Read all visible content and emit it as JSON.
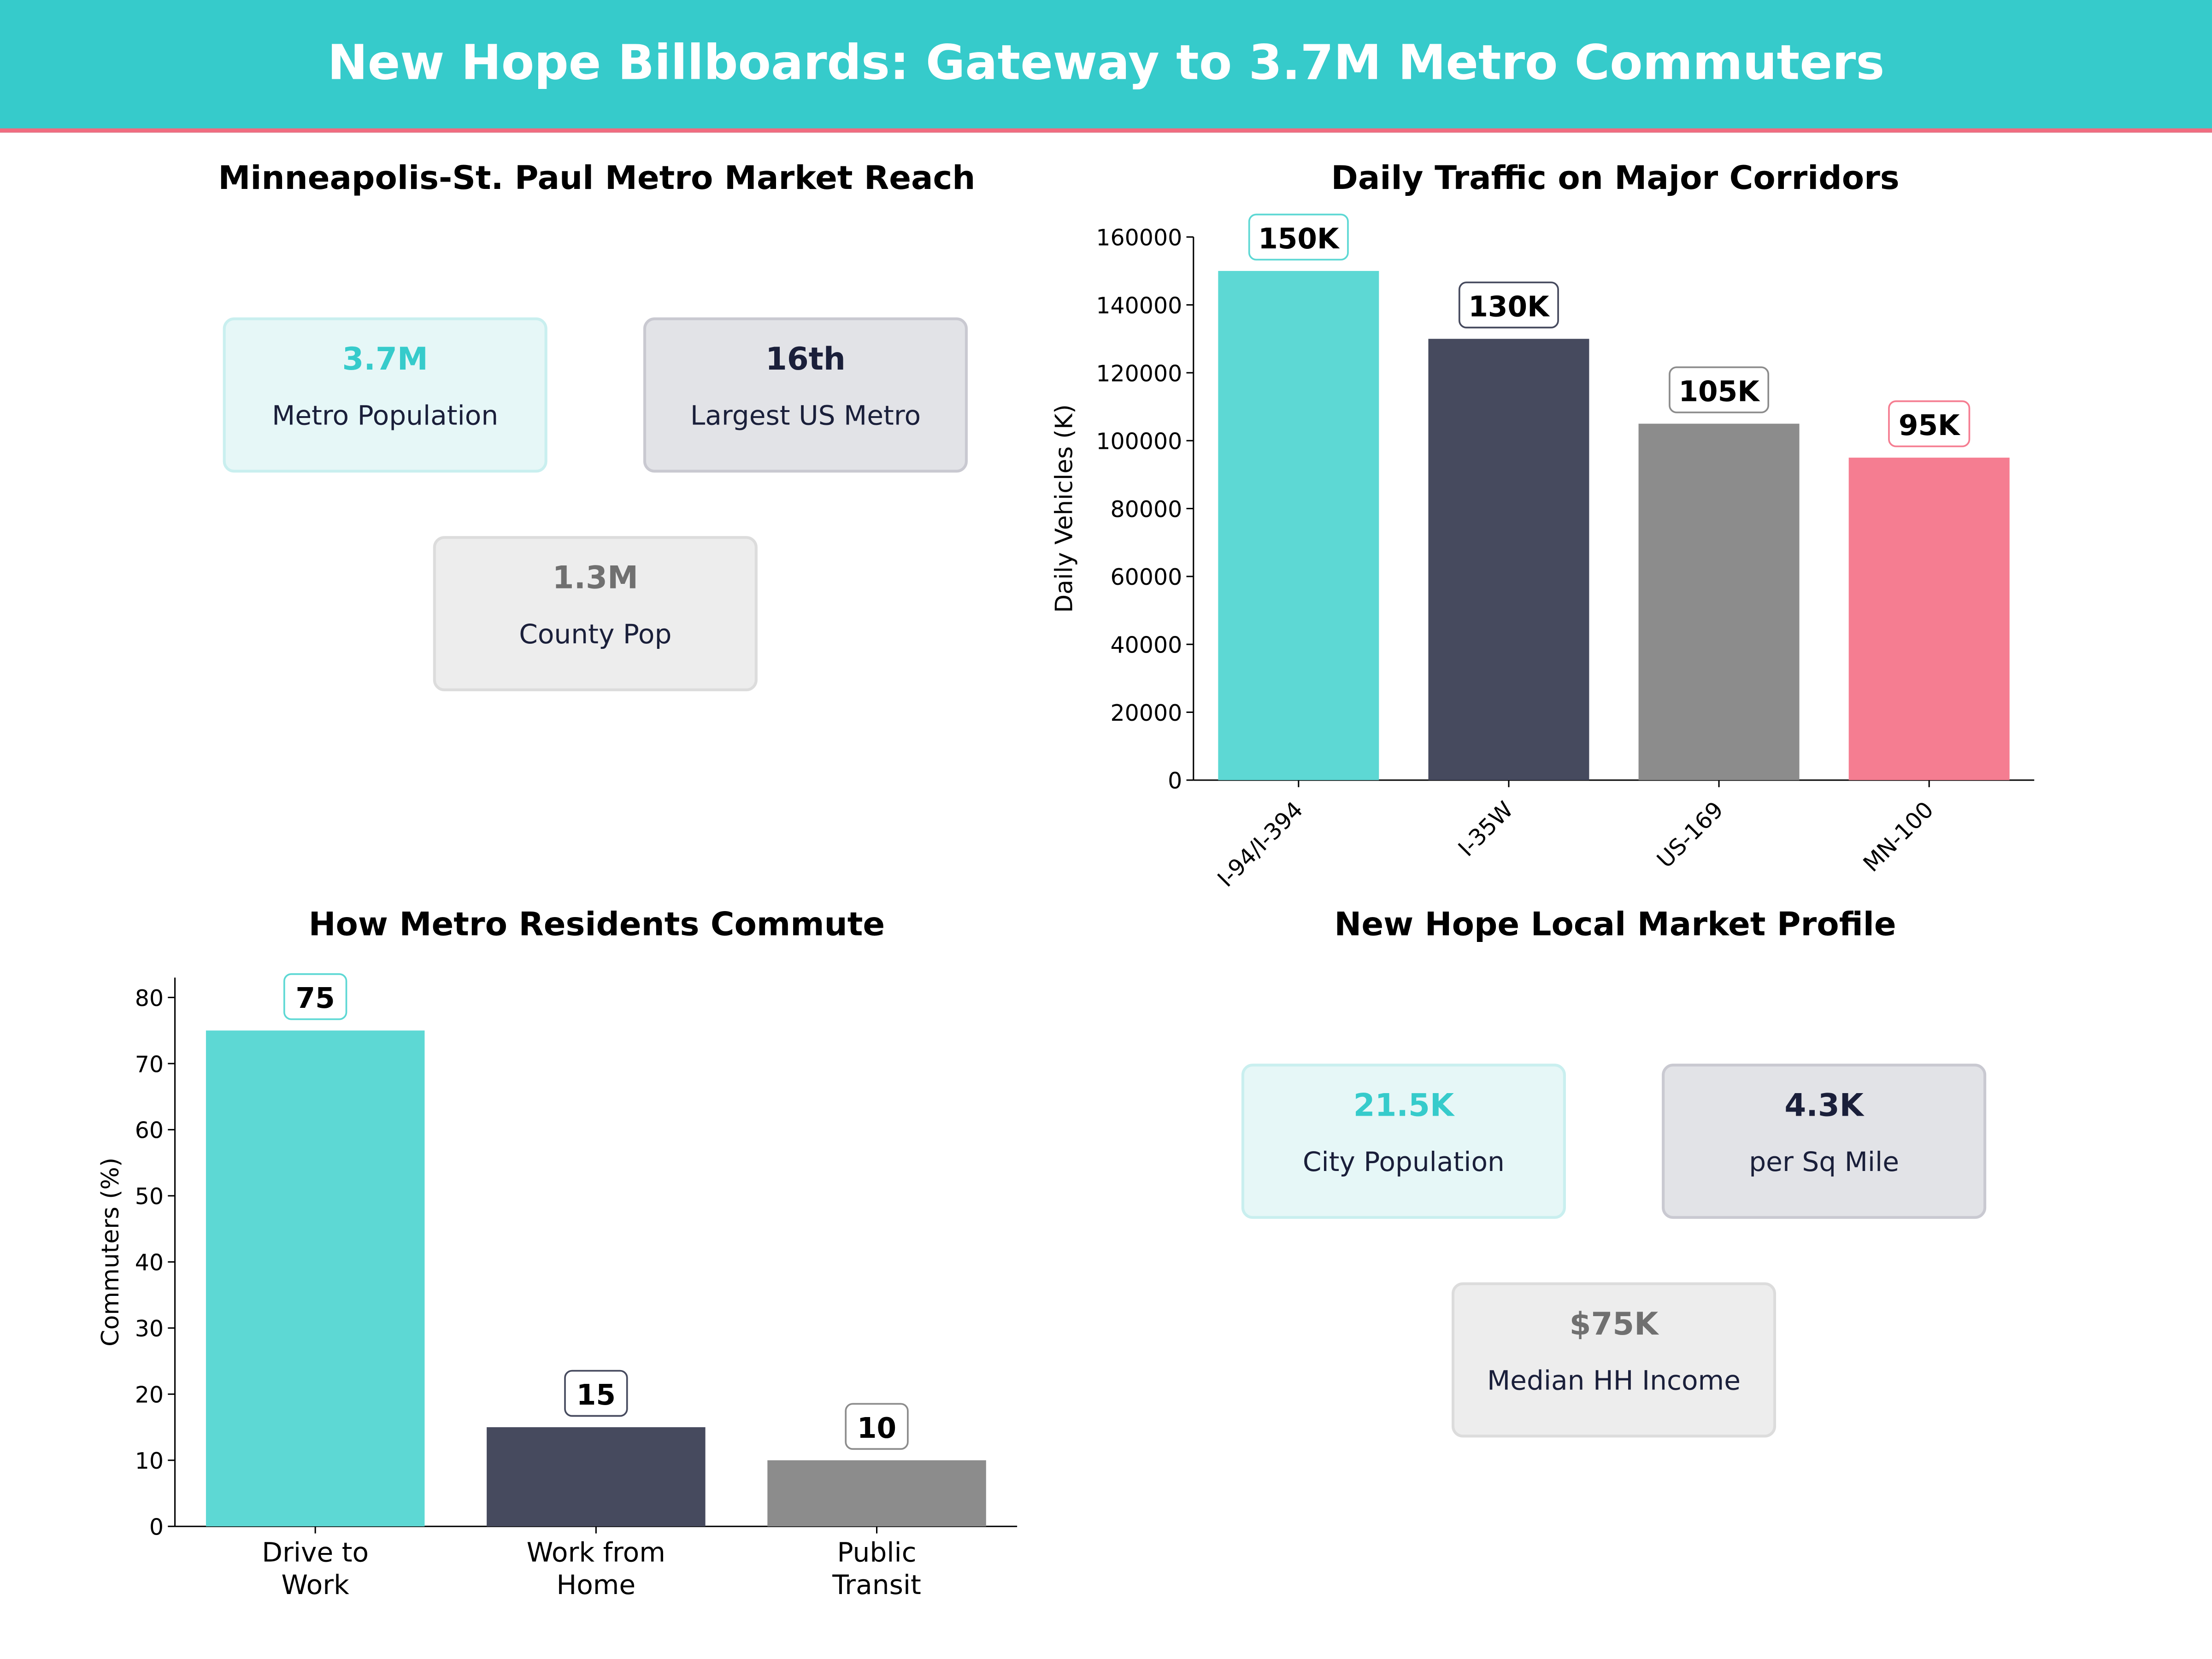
{
  "header": {
    "title": "New Hope Billboards: Gateway to 3.7M Metro Commuters"
  },
  "colors": {
    "teal": "#36cbcb",
    "navy": "#464a5e",
    "gray": "#8c8c8c",
    "pink": "#f57d91",
    "bar_teal": "#5dd8d4"
  },
  "metro_panel": {
    "title": "Minneapolis-St. Paul Metro Market Reach",
    "cards": [
      {
        "value": "3.7M",
        "label": "Metro Population"
      },
      {
        "value": "16th",
        "label": "Largest US Metro"
      },
      {
        "value": "1.3M",
        "label": "County Pop"
      }
    ]
  },
  "local_panel": {
    "title": "New Hope Local Market Profile",
    "cards": [
      {
        "value": "21.5K",
        "label": "City Population"
      },
      {
        "value": "4.3K",
        "label": "per Sq Mile"
      },
      {
        "value": "$75K",
        "label": "Median HH Income"
      }
    ]
  },
  "chart_data": [
    {
      "type": "bar",
      "title": "Daily Traffic on Major Corridors",
      "xlabel": "",
      "ylabel": "Daily Vehicles (K)",
      "categories": [
        "I-94/I-394",
        "I-35W",
        "US-169",
        "MN-100"
      ],
      "values": [
        150000,
        130000,
        105000,
        95000
      ],
      "data_labels": [
        "150K",
        "130K",
        "105K",
        "95K"
      ],
      "bar_colors": [
        "#5dd8d4",
        "#464a5e",
        "#8c8c8c",
        "#f57d91"
      ],
      "label_border_colors": [
        "#5dd8d4",
        "#464a5e",
        "#8c8c8c",
        "#f57d91"
      ],
      "yticks": [
        0,
        20000,
        40000,
        60000,
        80000,
        100000,
        120000,
        140000,
        160000
      ],
      "ylim": [
        0,
        160000
      ],
      "grid": false
    },
    {
      "type": "bar",
      "title": "How Metro Residents Commute",
      "xlabel": "",
      "ylabel": "Commuters (%)",
      "categories": [
        "Drive to\nWork",
        "Work from\nHome",
        "Public\nTransit"
      ],
      "values": [
        75,
        15,
        10
      ],
      "data_labels": [
        "75",
        "15",
        "10"
      ],
      "bar_colors": [
        "#5dd8d4",
        "#464a5e",
        "#8c8c8c"
      ],
      "label_border_colors": [
        "#5dd8d4",
        "#464a5e",
        "#8c8c8c"
      ],
      "yticks": [
        0,
        10,
        20,
        30,
        40,
        50,
        60,
        70,
        80
      ],
      "ylim": [
        0,
        83
      ],
      "grid": false
    }
  ]
}
